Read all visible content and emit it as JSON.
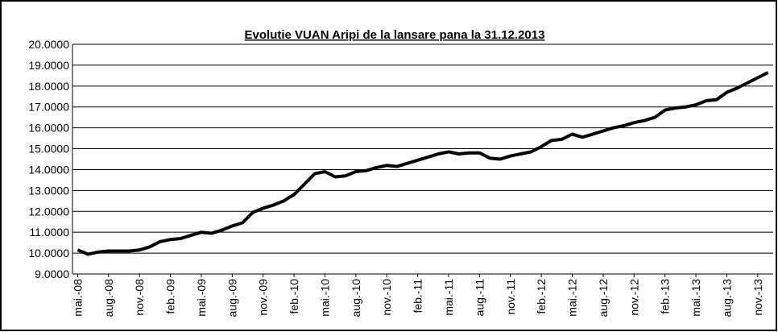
{
  "chart_data": {
    "type": "line",
    "title": "Evolutie VUAN Aripi de la lansare pana la 31.12.2013",
    "categories": [
      "mai.-08",
      null,
      null,
      "aug.-08",
      null,
      null,
      "nov.-08",
      null,
      null,
      "feb.-09",
      null,
      null,
      "mai.-09",
      null,
      null,
      "aug.-09",
      null,
      null,
      "nov.-09",
      null,
      null,
      "feb.-10",
      null,
      null,
      "mai.-10",
      null,
      null,
      "aug.-10",
      null,
      null,
      "nov.-10",
      null,
      null,
      "feb.-11",
      null,
      null,
      "mai.-11",
      null,
      null,
      "aug.-11",
      null,
      null,
      "nov.-11",
      null,
      null,
      "feb.-12",
      null,
      null,
      "mai.-12",
      null,
      null,
      "aug.-12",
      null,
      null,
      "nov.-12",
      null,
      null,
      "feb.-13",
      null,
      null,
      "mai.-13",
      null,
      null,
      "aug.-13",
      null,
      null,
      "nov.-13",
      null
    ],
    "values": [
      10.15,
      9.95,
      10.05,
      10.1,
      10.1,
      10.1,
      10.15,
      10.3,
      10.55,
      10.65,
      10.7,
      10.85,
      11.0,
      10.95,
      11.1,
      11.3,
      11.45,
      11.95,
      12.15,
      12.3,
      12.5,
      12.8,
      13.3,
      13.8,
      13.9,
      13.65,
      13.7,
      13.9,
      13.95,
      14.1,
      14.2,
      14.15,
      14.3,
      14.45,
      14.6,
      14.75,
      14.85,
      14.75,
      14.8,
      14.8,
      14.55,
      14.5,
      14.65,
      14.75,
      14.85,
      15.1,
      15.4,
      15.45,
      15.7,
      15.55,
      15.7,
      15.85,
      16.0,
      16.1,
      16.25,
      16.35,
      16.5,
      16.85,
      16.95,
      17.0,
      17.1,
      17.3,
      17.35,
      17.7,
      17.9,
      18.15,
      18.4,
      18.65
    ],
    "color": "#000000",
    "ylim": [
      9,
      20
    ],
    "yticks": [
      {
        "value": 9,
        "label": "9.0000"
      },
      {
        "value": 10,
        "label": "10.0000"
      },
      {
        "value": 11,
        "label": "11.0000"
      },
      {
        "value": 12,
        "label": "12.0000"
      },
      {
        "value": 13,
        "label": "13.0000"
      },
      {
        "value": 14,
        "label": "14.0000"
      },
      {
        "value": 15,
        "label": "15.0000"
      },
      {
        "value": 16,
        "label": "16.0000"
      },
      {
        "value": 17,
        "label": "17.0000"
      },
      {
        "value": 18,
        "label": "18.0000"
      },
      {
        "value": 19,
        "label": "19.0000"
      },
      {
        "value": 20,
        "label": "20.0000"
      }
    ],
    "grid": true
  }
}
